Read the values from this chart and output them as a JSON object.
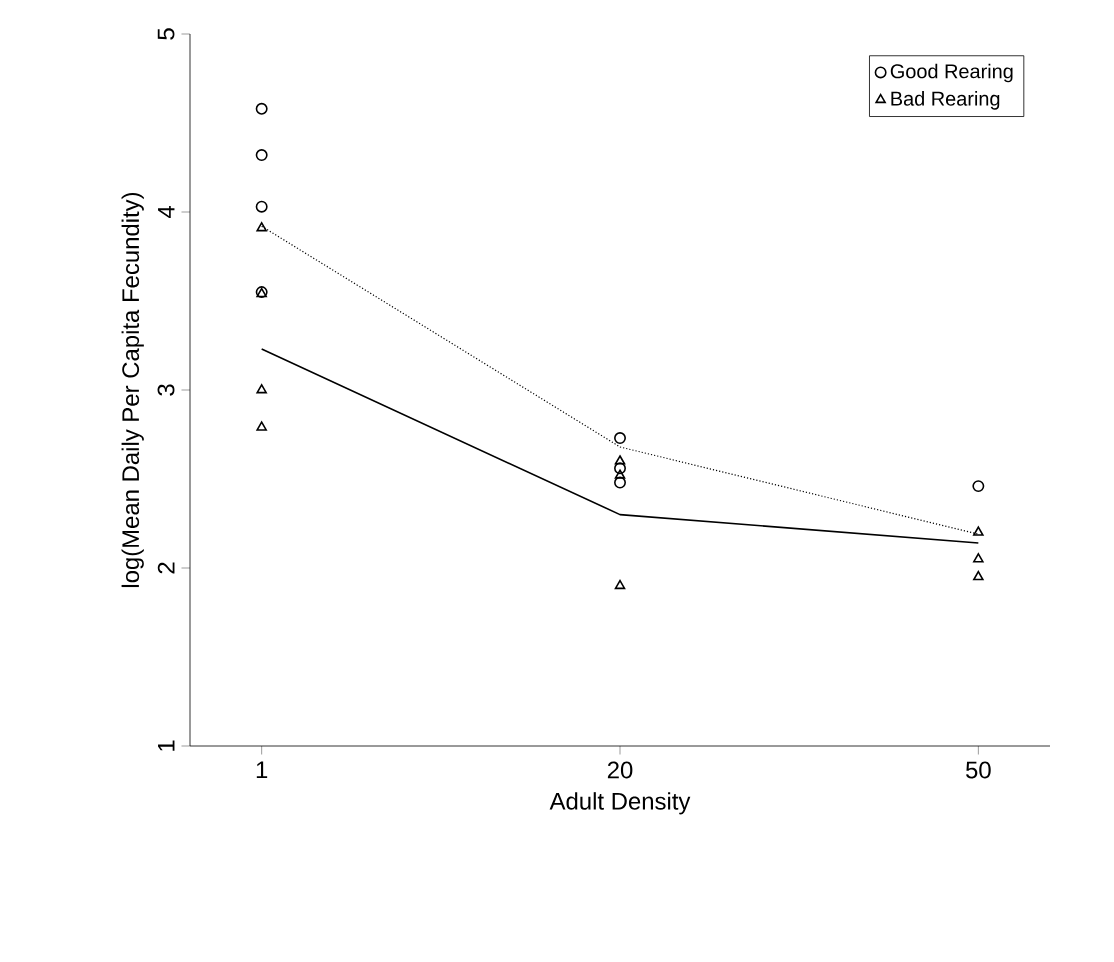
{
  "chart_data": {
    "type": "scatter",
    "xlabel": "Adult Density",
    "ylabel": "log(Mean Daily Per Capita Fecundity)",
    "categories": [
      "1",
      "20",
      "50"
    ],
    "ylim": [
      1,
      5
    ],
    "yticks": [
      1,
      2,
      3,
      4,
      5
    ],
    "legend": "top right",
    "series": [
      {
        "name": "Good Rearing",
        "marker": "circle",
        "color": "#000000",
        "x": [
          "1",
          "1",
          "1",
          "1",
          "20",
          "20",
          "20",
          "50"
        ],
        "values": [
          4.58,
          4.32,
          4.03,
          3.55,
          2.73,
          2.56,
          2.48,
          2.46
        ]
      },
      {
        "name": "Bad Rearing",
        "marker": "triangle",
        "color": "#000000",
        "x": [
          "1",
          "1",
          "1",
          "1",
          "20",
          "20",
          "20",
          "50",
          "50",
          "50"
        ],
        "values": [
          3.91,
          3.54,
          3.0,
          2.79,
          2.6,
          2.52,
          1.9,
          2.2,
          2.05,
          1.95
        ]
      },
      {
        "type": "line",
        "line_style": "dotted",
        "color": "#000000",
        "values": [
          3.92,
          2.68,
          2.19
        ]
      },
      {
        "type": "line",
        "line_style": "solid",
        "color": "#000000",
        "values": [
          3.23,
          2.3,
          2.14
        ]
      }
    ]
  }
}
